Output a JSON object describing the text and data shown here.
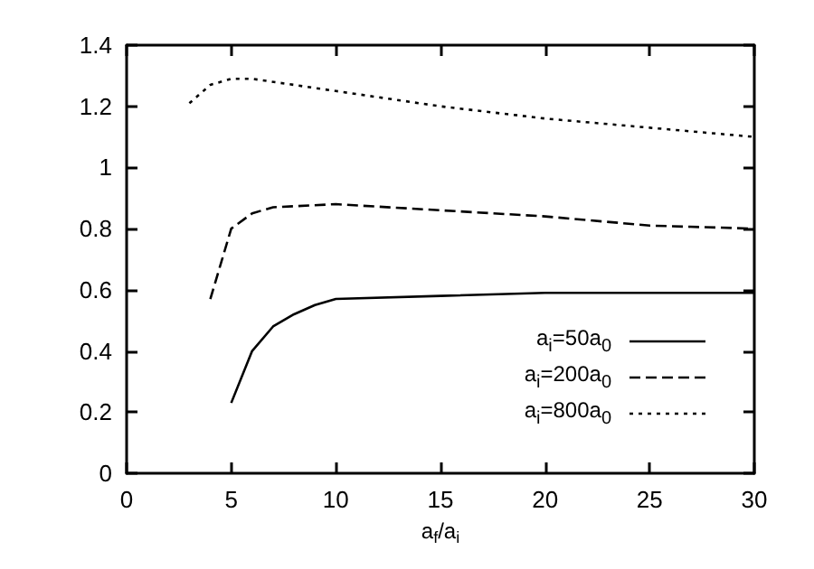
{
  "chart_data": {
    "type": "line",
    "xlabel": "a$_{f}$/a$_{i}$",
    "xlim": [
      0,
      30
    ],
    "xticks": [
      0,
      5,
      10,
      15,
      20,
      25,
      30
    ],
    "ylim": [
      0,
      1.4
    ],
    "yticks": [
      0,
      0.2,
      0.4,
      0.6,
      0.8,
      1,
      1.2,
      1.4
    ],
    "grid": false,
    "legend": "bottom right",
    "marker": "none",
    "series": [
      {
        "name": "a$_{i}$=50a$_{0}$",
        "color": "#000000",
        "line_style": "solid",
        "x": [
          5,
          6,
          7,
          8,
          9,
          10,
          15,
          20,
          30
        ],
        "values": [
          0.23,
          0.4,
          0.48,
          0.52,
          0.55,
          0.57,
          0.58,
          0.59,
          0.59
        ]
      },
      {
        "name": "a$_{i}$=200a$_{0}$",
        "color": "#000000",
        "line_style": "dashed",
        "x": [
          4,
          5,
          6,
          7,
          10,
          15,
          20,
          25,
          30
        ],
        "values": [
          0.57,
          0.8,
          0.85,
          0.87,
          0.88,
          0.86,
          0.84,
          0.81,
          0.8
        ]
      },
      {
        "name": "a$_{i}$=800a$_{0}$",
        "color": "#000000",
        "line_style": "dotted",
        "x": [
          3,
          4,
          5,
          6,
          8,
          10,
          15,
          20,
          25,
          30
        ],
        "values": [
          1.21,
          1.27,
          1.29,
          1.29,
          1.27,
          1.25,
          1.2,
          1.16,
          1.13,
          1.1
        ]
      }
    ]
  }
}
